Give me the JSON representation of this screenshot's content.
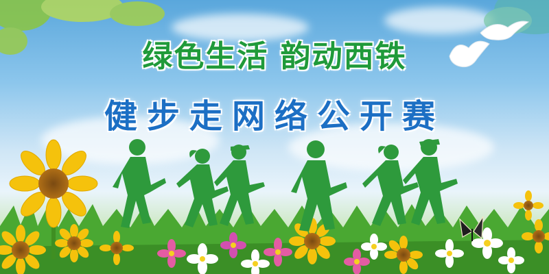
{
  "banner": {
    "title_line1": "绿色生活  韵动西铁",
    "title_line2": "健步走网络公开赛"
  },
  "colors": {
    "title_green": "#1f9a3a",
    "title_blue": "#1c6fc4",
    "silhouette_green": "#2e9a3c",
    "grass_green": "#4aa832",
    "sunflower_yellow": "#f5c20c"
  },
  "icons": [
    "sunflower-icon",
    "dove-icon",
    "butterfly-icon",
    "walker-silhouette-icon",
    "flower-icon"
  ]
}
